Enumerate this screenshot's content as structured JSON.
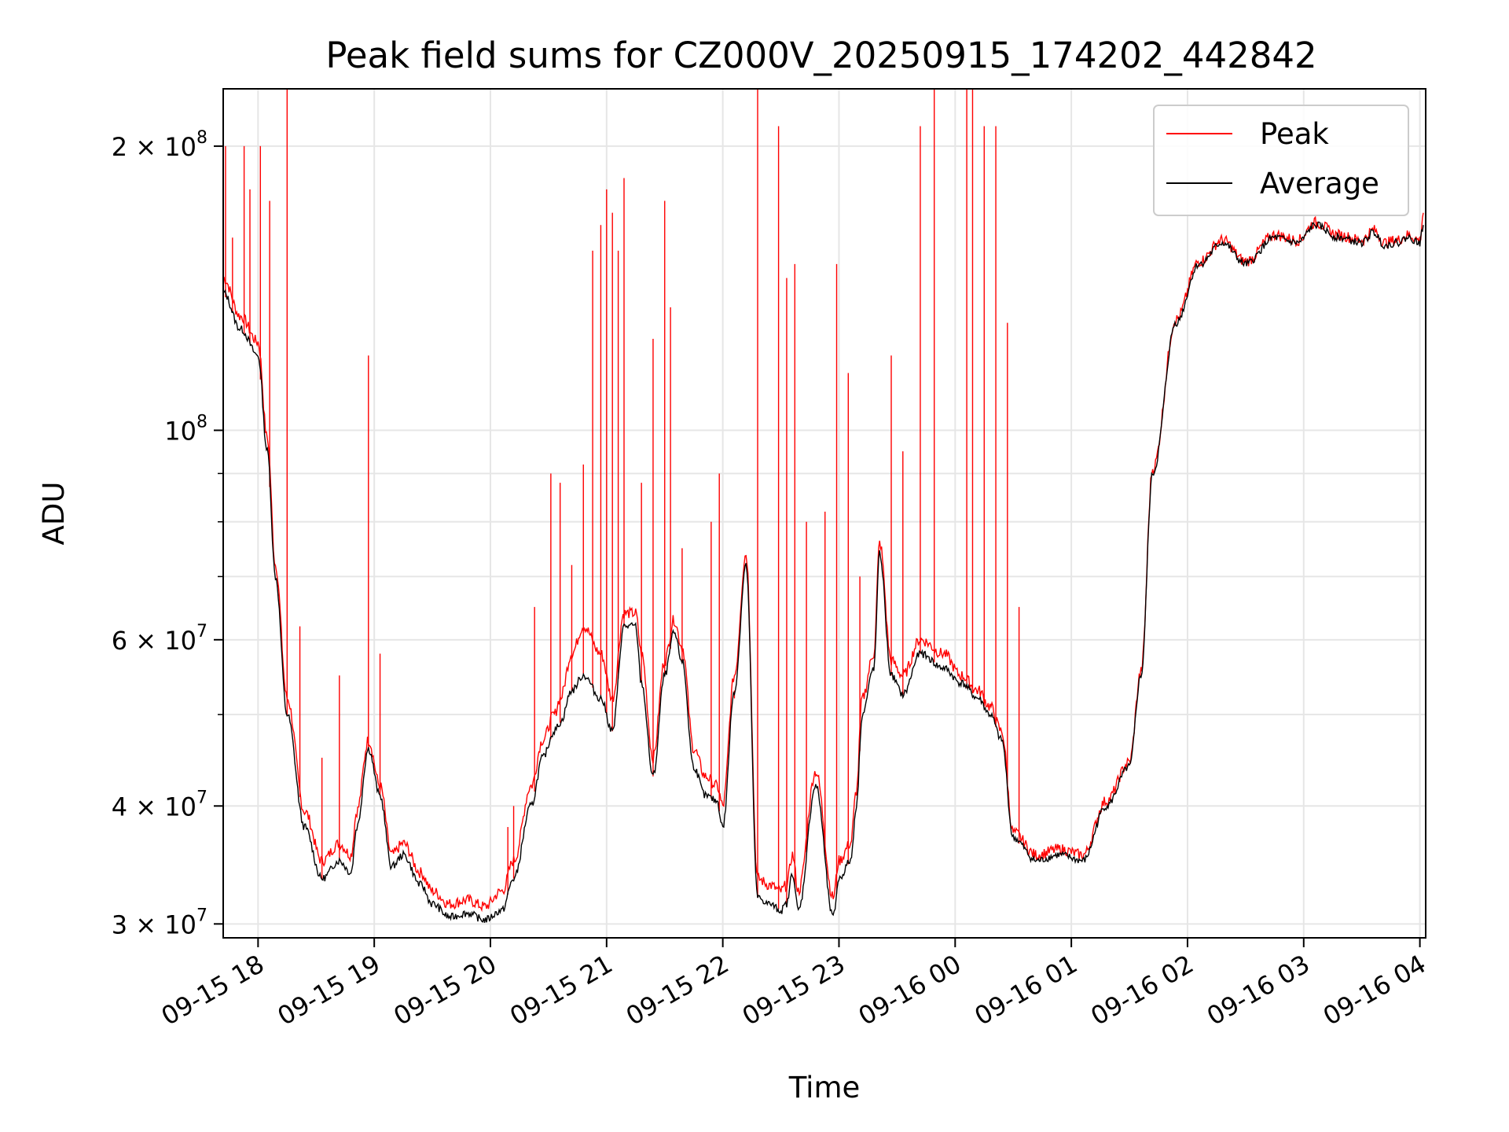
{
  "chart_data": {
    "type": "line",
    "title": "Peak field sums for CZ000V_20250915_174202_442842",
    "xlabel": "Time",
    "ylabel": "ADU",
    "y_scale": "log",
    "ylim": [
      29000000,
      230000000
    ],
    "xlim_hours": [
      17.7,
      28.05
    ],
    "grid": true,
    "legend_position": "upper right",
    "colors": {
      "Peak": "#ff0000",
      "Average": "#000000"
    },
    "x_ticks": [
      {
        "label": "09-15 18",
        "hour": 18
      },
      {
        "label": "09-15 19",
        "hour": 19
      },
      {
        "label": "09-15 20",
        "hour": 20
      },
      {
        "label": "09-15 21",
        "hour": 21
      },
      {
        "label": "09-15 22",
        "hour": 22
      },
      {
        "label": "09-15 23",
        "hour": 23
      },
      {
        "label": "09-16 00",
        "hour": 24
      },
      {
        "label": "09-16 01",
        "hour": 25
      },
      {
        "label": "09-16 02",
        "hour": 26
      },
      {
        "label": "09-16 03",
        "hour": 27
      },
      {
        "label": "09-16 04",
        "hour": 28
      }
    ],
    "y_ticks_major": [
      {
        "value": 30000000,
        "mant": "3",
        "exp": "7"
      },
      {
        "value": 40000000,
        "mant": "4",
        "exp": "7"
      },
      {
        "value": 60000000,
        "mant": "6",
        "exp": "7"
      },
      {
        "value": 100000000,
        "mant": "",
        "exp": "8"
      },
      {
        "value": 200000000,
        "mant": "2",
        "exp": "8"
      }
    ],
    "y_ticks_minor": [
      50000000,
      70000000,
      80000000,
      90000000
    ],
    "series": [
      {
        "name": "Average",
        "x": [
          17.7,
          17.85,
          18.0,
          18.08,
          18.15,
          18.25,
          18.4,
          18.55,
          18.7,
          18.8,
          18.85,
          18.95,
          19.05,
          19.15,
          19.25,
          19.4,
          19.5,
          19.65,
          19.8,
          19.95,
          20.1,
          20.2,
          20.35,
          20.45,
          20.55,
          20.6,
          20.7,
          20.8,
          20.95,
          21.05,
          21.15,
          21.25,
          21.3,
          21.4,
          21.5,
          21.58,
          21.65,
          21.75,
          21.85,
          21.95,
          22.0,
          22.1,
          22.2,
          22.3,
          22.4,
          22.5,
          22.55,
          22.6,
          22.65,
          22.8,
          22.95,
          23.0,
          23.1,
          23.15,
          23.2,
          23.3,
          23.35,
          23.45,
          23.55,
          23.7,
          23.9,
          24.05,
          24.2,
          24.3,
          24.4,
          24.5,
          24.7,
          24.9,
          25.1,
          25.3,
          25.5,
          25.6,
          25.7,
          25.9,
          26.1,
          26.3,
          26.5,
          26.75,
          26.95,
          27.1,
          27.3,
          27.5,
          27.6,
          27.7,
          27.8,
          27.9,
          28.0,
          28.03
        ],
        "y": [
          140000000,
          128000000,
          120000000,
          95000000,
          70000000,
          50000000,
          38000000,
          33500000,
          35000000,
          34000000,
          38000000,
          46000000,
          41000000,
          34500000,
          35500000,
          33000000,
          31500000,
          30500000,
          30800000,
          30300000,
          31000000,
          33500000,
          40000000,
          45000000,
          48000000,
          49000000,
          53000000,
          55000000,
          52000000,
          48000000,
          62000000,
          62000000,
          54000000,
          43000000,
          55000000,
          61000000,
          57000000,
          44000000,
          41000000,
          40500000,
          38000000,
          53000000,
          72000000,
          32000000,
          31500000,
          31000000,
          31500000,
          34000000,
          31000000,
          42000000,
          30500000,
          33500000,
          35000000,
          40000000,
          50000000,
          56000000,
          74000000,
          55000000,
          52500000,
          58000000,
          56000000,
          54000000,
          52000000,
          50000000,
          47000000,
          37000000,
          35000000,
          35500000,
          35000000,
          40000000,
          44000000,
          55000000,
          90000000,
          130000000,
          150000000,
          158000000,
          150000000,
          160000000,
          158000000,
          165000000,
          160000000,
          158000000,
          162000000,
          157000000,
          158000000,
          160000000,
          158000000,
          165000000
        ]
      },
      {
        "name": "Peak",
        "x": [
          17.7,
          17.85,
          18.0,
          18.08,
          18.15,
          18.25,
          18.4,
          18.55,
          18.7,
          18.8,
          18.85,
          18.95,
          19.05,
          19.15,
          19.25,
          19.4,
          19.5,
          19.65,
          19.8,
          19.95,
          20.1,
          20.2,
          20.35,
          20.45,
          20.55,
          20.6,
          20.7,
          20.8,
          20.95,
          21.05,
          21.15,
          21.25,
          21.3,
          21.4,
          21.5,
          21.58,
          21.65,
          21.75,
          21.85,
          21.95,
          22.0,
          22.1,
          22.2,
          22.3,
          22.4,
          22.5,
          22.55,
          22.6,
          22.65,
          22.8,
          22.95,
          23.0,
          23.1,
          23.15,
          23.2,
          23.3,
          23.35,
          23.45,
          23.55,
          23.7,
          23.9,
          24.05,
          24.2,
          24.3,
          24.4,
          24.5,
          24.7,
          24.9,
          25.1,
          25.3,
          25.5,
          25.6,
          25.7,
          25.9,
          26.1,
          26.3,
          26.5,
          26.75,
          26.95,
          27.1,
          27.3,
          27.5,
          27.6,
          27.7,
          27.8,
          27.9,
          28.0,
          28.03
        ],
        "y": [
          145000000,
          132000000,
          124000000,
          98000000,
          72000000,
          52000000,
          39500000,
          35000000,
          36500000,
          35500000,
          39500000,
          47000000,
          42000000,
          35500000,
          36500000,
          34000000,
          32500000,
          31500000,
          31800000,
          31300000,
          32500000,
          35000000,
          42000000,
          47000000,
          50000000,
          52000000,
          58000000,
          62000000,
          58000000,
          52000000,
          64000000,
          64000000,
          58000000,
          45000000,
          57000000,
          63000000,
          59000000,
          46000000,
          43000000,
          42000000,
          40000000,
          55000000,
          74000000,
          33500000,
          33000000,
          32500000,
          33000000,
          35500000,
          32500000,
          43500000,
          32000000,
          35000000,
          36500000,
          41500000,
          52000000,
          58000000,
          76000000,
          57000000,
          55000000,
          60000000,
          58000000,
          55000000,
          53000000,
          51000000,
          48000000,
          37500000,
          35500000,
          36000000,
          35500000,
          40500000,
          44500000,
          55500000,
          91000000,
          131000000,
          151000000,
          159000000,
          151000000,
          161000000,
          159000000,
          166000000,
          161000000,
          159000000,
          163000000,
          158000000,
          159000000,
          161000000,
          159000000,
          170000000
        ]
      }
    ],
    "peak_spikes": [
      {
        "x": 17.72,
        "y": 200000000
      },
      {
        "x": 17.78,
        "y": 160000000
      },
      {
        "x": 17.88,
        "y": 200000000
      },
      {
        "x": 17.93,
        "y": 180000000
      },
      {
        "x": 18.02,
        "y": 200000000
      },
      {
        "x": 18.1,
        "y": 175000000
      },
      {
        "x": 18.25,
        "y": 300000000
      },
      {
        "x": 18.36,
        "y": 62000000
      },
      {
        "x": 18.55,
        "y": 45000000
      },
      {
        "x": 18.7,
        "y": 55000000
      },
      {
        "x": 18.95,
        "y": 120000000
      },
      {
        "x": 19.05,
        "y": 58000000
      },
      {
        "x": 20.15,
        "y": 38000000
      },
      {
        "x": 20.2,
        "y": 40000000
      },
      {
        "x": 20.38,
        "y": 65000000
      },
      {
        "x": 20.52,
        "y": 90000000
      },
      {
        "x": 20.6,
        "y": 88000000
      },
      {
        "x": 20.7,
        "y": 72000000
      },
      {
        "x": 20.8,
        "y": 92000000
      },
      {
        "x": 20.88,
        "y": 155000000
      },
      {
        "x": 20.95,
        "y": 165000000
      },
      {
        "x": 21.0,
        "y": 180000000
      },
      {
        "x": 21.05,
        "y": 170000000
      },
      {
        "x": 21.1,
        "y": 155000000
      },
      {
        "x": 21.15,
        "y": 185000000
      },
      {
        "x": 21.3,
        "y": 88000000
      },
      {
        "x": 21.4,
        "y": 125000000
      },
      {
        "x": 21.5,
        "y": 175000000
      },
      {
        "x": 21.55,
        "y": 135000000
      },
      {
        "x": 21.65,
        "y": 75000000
      },
      {
        "x": 21.9,
        "y": 80000000
      },
      {
        "x": 21.97,
        "y": 90000000
      },
      {
        "x": 22.1,
        "y": 52000000
      },
      {
        "x": 22.3,
        "y": 230000000
      },
      {
        "x": 22.48,
        "y": 210000000
      },
      {
        "x": 22.55,
        "y": 145000000
      },
      {
        "x": 22.62,
        "y": 150000000
      },
      {
        "x": 22.72,
        "y": 80000000
      },
      {
        "x": 22.88,
        "y": 82000000
      },
      {
        "x": 22.98,
        "y": 150000000
      },
      {
        "x": 23.08,
        "y": 115000000
      },
      {
        "x": 23.18,
        "y": 70000000
      },
      {
        "x": 23.45,
        "y": 120000000
      },
      {
        "x": 23.55,
        "y": 95000000
      },
      {
        "x": 23.7,
        "y": 210000000
      },
      {
        "x": 23.82,
        "y": 230000000
      },
      {
        "x": 24.1,
        "y": 240000000
      },
      {
        "x": 24.15,
        "y": 240000000
      },
      {
        "x": 24.25,
        "y": 210000000
      },
      {
        "x": 24.35,
        "y": 210000000
      },
      {
        "x": 24.45,
        "y": 130000000
      },
      {
        "x": 24.55,
        "y": 65000000
      }
    ]
  }
}
